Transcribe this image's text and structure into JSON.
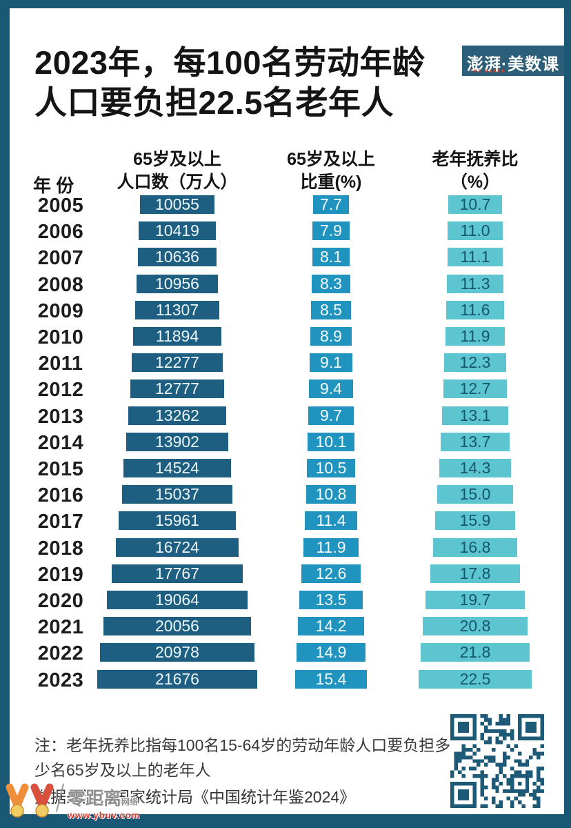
{
  "colors": {
    "frame": "#1b5876",
    "bar_population": "#1e5e80",
    "bar_share": "#2093bf",
    "bar_dependency": "#5cc5d0",
    "bar_dependency_text": "#14566e",
    "qr": "#1d5a78",
    "logo_bg": "#2b5e78",
    "logo_sub_text": "#d2452f",
    "watermark_url_color": "#d63c2f"
  },
  "title": {
    "line1": "2023年，每100名劳动年龄",
    "line2": "人口要负担22.5名老年人"
  },
  "logo": {
    "main": "澎湃·美数课",
    "sub": "THE PAPER"
  },
  "table_headers": {
    "year": "年 份",
    "population_line1": "65岁及以上",
    "population_line2": "人口数（万人）",
    "share_line1": "65岁及以上",
    "share_line2": "比重(%)",
    "dependency_line1": "老年抚养比",
    "dependency_line2": "（%）"
  },
  "chart_data": {
    "type": "bar",
    "title": "2023年，每100名劳动年龄人口要负担22.5名老年人",
    "layout": "three columns of horizontally-centered bars, one row per year, value labels inside bars, no axes or grid",
    "categories": [
      "2005",
      "2006",
      "2007",
      "2008",
      "2009",
      "2010",
      "2011",
      "2012",
      "2013",
      "2014",
      "2015",
      "2016",
      "2017",
      "2018",
      "2019",
      "2020",
      "2021",
      "2022",
      "2023"
    ],
    "series": [
      {
        "name": "65岁及以上人口数（万人）",
        "values": [
          10055,
          10419,
          10636,
          10956,
          11307,
          11894,
          12277,
          12777,
          13262,
          13902,
          14524,
          15037,
          15961,
          16724,
          17767,
          19064,
          20056,
          20978,
          21676
        ],
        "labels": [
          "10055",
          "10419",
          "10636",
          "10956",
          "11307",
          "11894",
          "12277",
          "12777",
          "13262",
          "13902",
          "14524",
          "15037",
          "15961",
          "16724",
          "17767",
          "19064",
          "20056",
          "20978",
          "21676"
        ]
      },
      {
        "name": "65岁及以上比重(%)",
        "values": [
          7.7,
          7.9,
          8.1,
          8.3,
          8.5,
          8.9,
          9.1,
          9.4,
          9.7,
          10.1,
          10.5,
          10.8,
          11.4,
          11.9,
          12.6,
          13.5,
          14.2,
          14.9,
          15.4
        ],
        "labels": [
          "7.7",
          "7.9",
          "8.1",
          "8.3",
          "8.5",
          "8.9",
          "9.1",
          "9.4",
          "9.7",
          "10.1",
          "10.5",
          "10.8",
          "11.4",
          "11.9",
          "12.6",
          "13.5",
          "14.2",
          "14.9",
          "15.4"
        ]
      },
      {
        "name": "老年抚养比（%）",
        "values": [
          10.7,
          11.0,
          11.1,
          11.3,
          11.6,
          11.9,
          12.3,
          12.7,
          13.1,
          13.7,
          14.3,
          15.0,
          15.9,
          16.8,
          17.8,
          19.7,
          20.8,
          21.8,
          22.5
        ],
        "labels": [
          "10.7",
          "11.0",
          "11.1",
          "11.3",
          "11.6",
          "11.9",
          "12.3",
          "12.7",
          "13.1",
          "13.7",
          "14.3",
          "15.0",
          "15.9",
          "16.8",
          "17.8",
          "19.7",
          "20.8",
          "21.8",
          "22.5"
        ]
      }
    ]
  },
  "footer": {
    "note": "注：老年抚养比指每100名15-64岁的劳动年龄人口要负担多少名65岁及以上的老年人",
    "source": "数据来源：国家统计局《中国统计年鉴2024》"
  },
  "watermark": {
    "name": "零距离",
    "sub": "网络",
    "url": "www.ybuv.com"
  }
}
